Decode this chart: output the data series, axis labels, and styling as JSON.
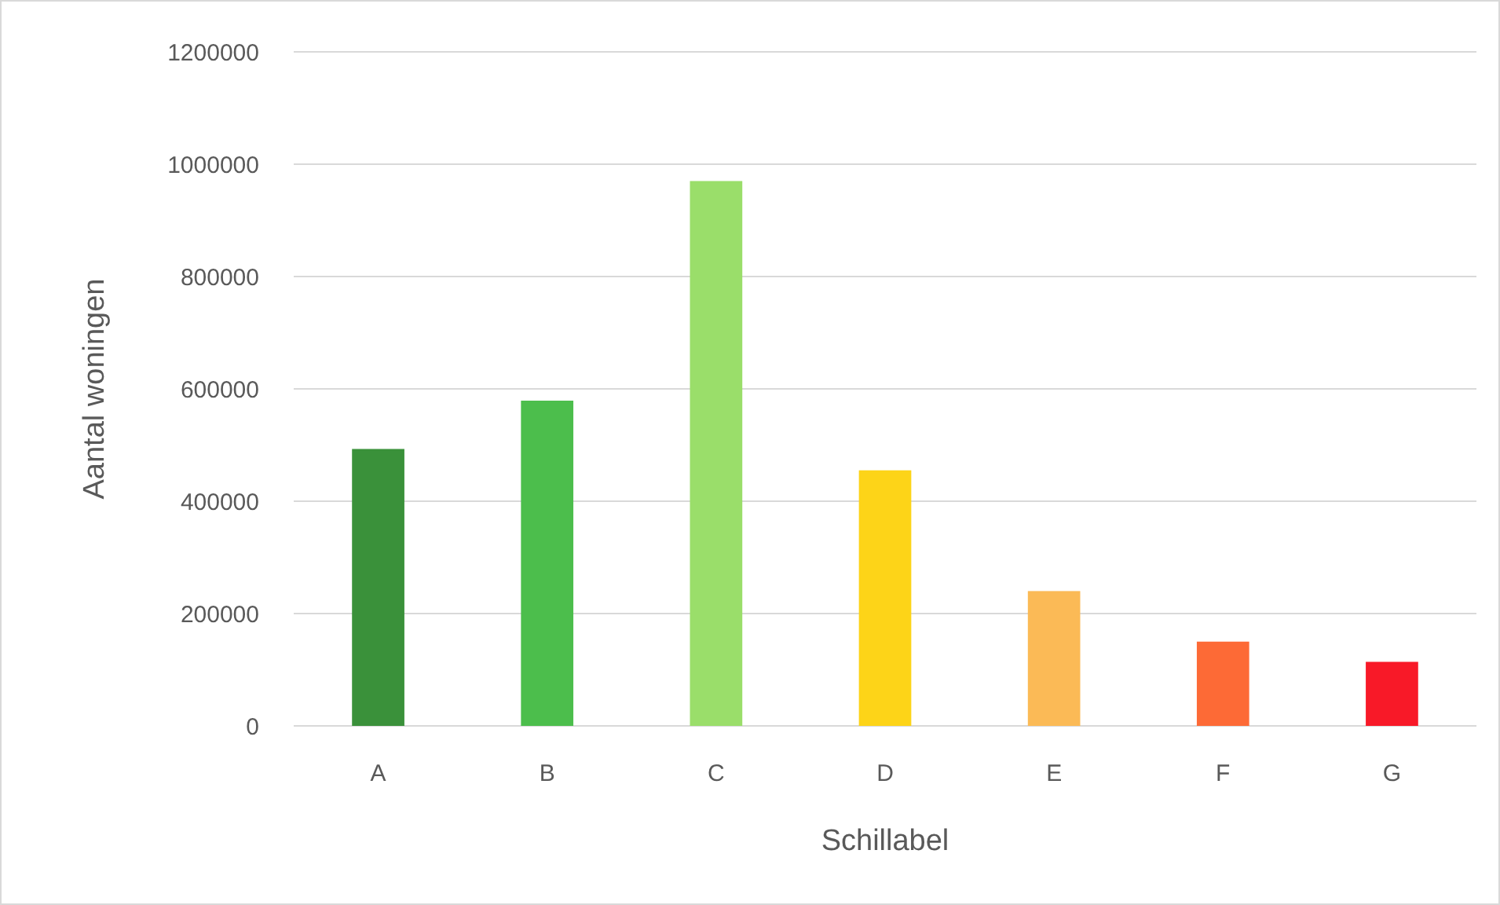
{
  "chart_data": {
    "type": "bar",
    "xlabel": "Schillabel",
    "ylabel": "Aantal woningen",
    "categories": [
      "A",
      "B",
      "C",
      "D",
      "E",
      "F",
      "G"
    ],
    "values": [
      493000,
      579000,
      970000,
      455000,
      240000,
      150000,
      114000
    ],
    "colors": [
      "#3a913a",
      "#4cbe4c",
      "#9ade6a",
      "#fdd418",
      "#fbba56",
      "#fd6a36",
      "#f81928"
    ],
    "ylim": [
      0,
      1200000
    ],
    "yticks": [
      0,
      200000,
      400000,
      600000,
      800000,
      1000000,
      1200000
    ],
    "grid": "y"
  }
}
